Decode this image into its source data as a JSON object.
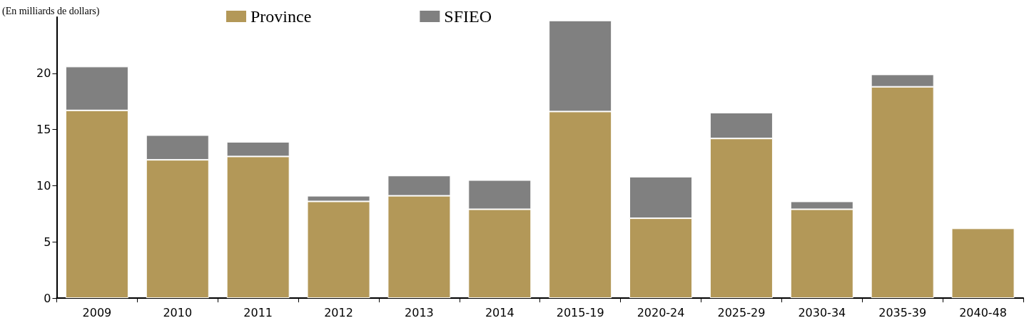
{
  "chart_data": {
    "type": "bar",
    "ylabel": "(En milliards de dollars)",
    "stacked": true,
    "categories": [
      "2009",
      "2010",
      "2011",
      "2012",
      "2013",
      "2014",
      "2015-19",
      "2020-24",
      "2025-29",
      "2030-34",
      "2035-39",
      "2040-48"
    ],
    "series": [
      {
        "name": "Province",
        "color": "#b39858",
        "values": [
          16.7,
          12.3,
          12.6,
          8.6,
          9.1,
          7.9,
          16.6,
          7.1,
          14.2,
          7.9,
          18.8,
          6.2
        ]
      },
      {
        "name": "SFIEO",
        "color": "#808080",
        "values": [
          3.9,
          2.2,
          1.3,
          0.5,
          1.8,
          2.6,
          8.1,
          3.7,
          2.3,
          0.7,
          1.1,
          0
        ]
      }
    ],
    "ylim": [
      0,
      25
    ],
    "yticks": [
      0,
      5,
      10,
      15,
      20
    ],
    "grid": false,
    "legend": "top"
  }
}
